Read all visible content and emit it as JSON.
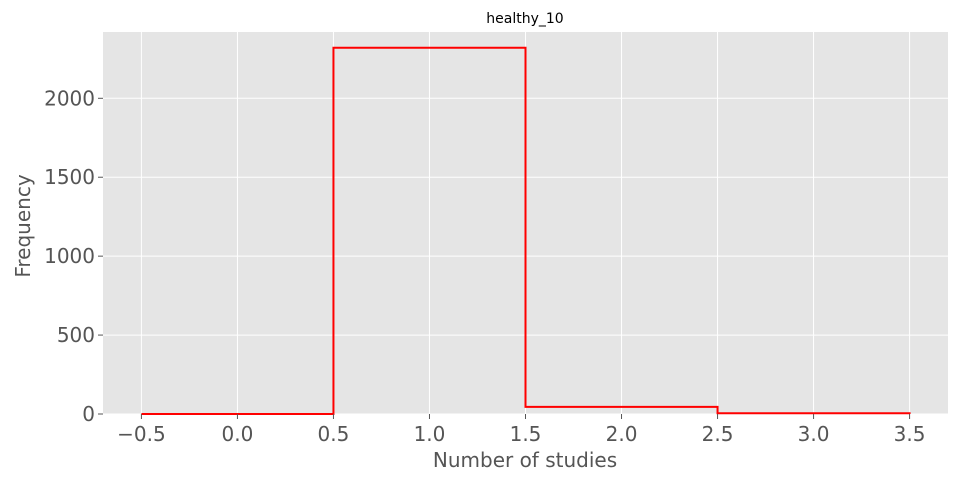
{
  "chart_data": {
    "type": "histogram-step",
    "title": "healthy_10",
    "xlabel": "Number of studies",
    "ylabel": "Frequency",
    "xlim": [
      -0.7,
      3.7
    ],
    "ylim": [
      0,
      2420
    ],
    "x_ticks": [
      -0.5,
      0.0,
      0.5,
      1.0,
      1.5,
      2.0,
      2.5,
      3.0,
      3.5
    ],
    "x_tick_labels": [
      "−0.5",
      "0.0",
      "0.5",
      "1.0",
      "1.5",
      "2.0",
      "2.5",
      "3.0",
      "3.5"
    ],
    "y_ticks": [
      0,
      500,
      1000,
      1500,
      2000
    ],
    "y_tick_labels": [
      "0",
      "500",
      "1000",
      "1500",
      "2000"
    ],
    "bins": [
      {
        "x0": -0.5,
        "x1": 0.5,
        "count": 0
      },
      {
        "x0": 0.5,
        "x1": 1.5,
        "count": 2320
      },
      {
        "x0": 1.5,
        "x1": 2.5,
        "count": 45
      },
      {
        "x0": 2.5,
        "x1": 3.5,
        "count": 5
      }
    ],
    "line_color": "#ff0000",
    "background_color": "#e5e5e5",
    "grid": true,
    "grid_color": "#ffffff"
  }
}
